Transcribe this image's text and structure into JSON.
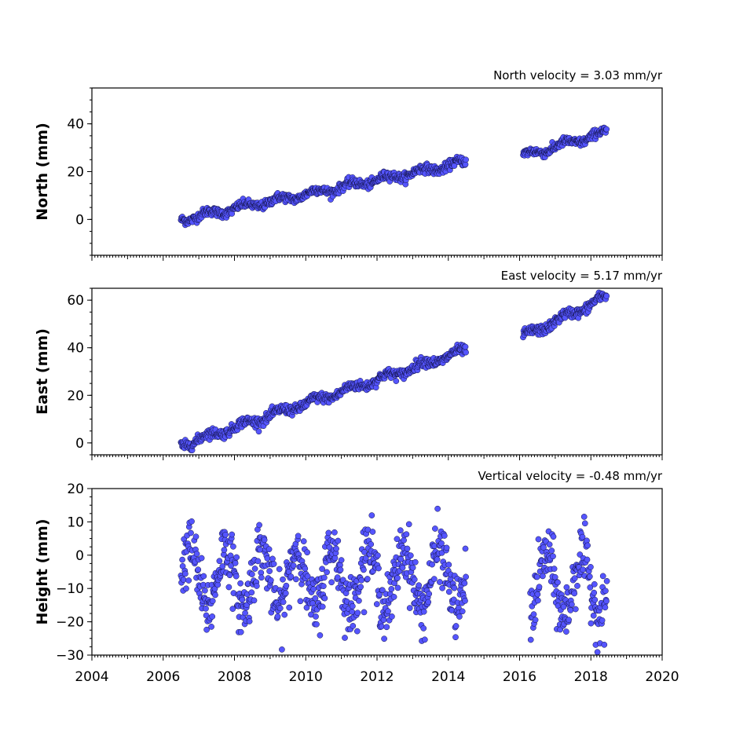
{
  "chart_data": [
    {
      "type": "scatter",
      "title": "North velocity = 3.03 mm/yr",
      "ylabel": "North (mm)",
      "xlim": [
        2004,
        2020
      ],
      "ylim": [
        -15,
        55
      ],
      "yticks": [
        0,
        20,
        40
      ],
      "xtick_labels_visible": false,
      "marker_color": "#5555ff",
      "segments": [
        {
          "start": 2006.5,
          "end": 2014.5,
          "y0": 0.0,
          "y1": 24.0,
          "noise": 0.9
        },
        {
          "start": 2016.1,
          "end": 2018.45,
          "y0": 26.5,
          "y1": 36.5,
          "noise": 0.9
        }
      ]
    },
    {
      "type": "scatter",
      "title": "East velocity = 5.17 mm/yr",
      "ylabel": "East (mm)",
      "xlim": [
        2004,
        2020
      ],
      "ylim": [
        -5,
        65
      ],
      "yticks": [
        0,
        20,
        40,
        60
      ],
      "xtick_labels_visible": false,
      "marker_color": "#5555ff",
      "segments": [
        {
          "start": 2006.5,
          "end": 2014.5,
          "y0": -1.0,
          "y1": 39.0,
          "noise": 1.0
        },
        {
          "start": 2016.1,
          "end": 2018.45,
          "y0": 44.5,
          "y1": 61.5,
          "noise": 1.0
        }
      ]
    },
    {
      "type": "scatter",
      "title": "Vertical velocity = -0.48 mm/yr",
      "ylabel": "Height (mm)",
      "xlim": [
        2004,
        2020
      ],
      "ylim": [
        -30,
        20
      ],
      "yticks": [
        -30,
        -20,
        -10,
        0,
        10,
        20
      ],
      "xticks": [
        2004,
        2006,
        2008,
        2010,
        2012,
        2014,
        2016,
        2018,
        2020
      ],
      "xtick_labels_visible": true,
      "marker_color": "#5555ff",
      "segments": [
        {
          "start": 2006.5,
          "end": 2014.5,
          "mean": -7.0,
          "amplitude": 9.0,
          "noise": 4.5
        },
        {
          "start": 2016.3,
          "end": 2018.45,
          "mean": -9.0,
          "amplitude": 9.0,
          "noise": 4.5
        }
      ]
    }
  ]
}
